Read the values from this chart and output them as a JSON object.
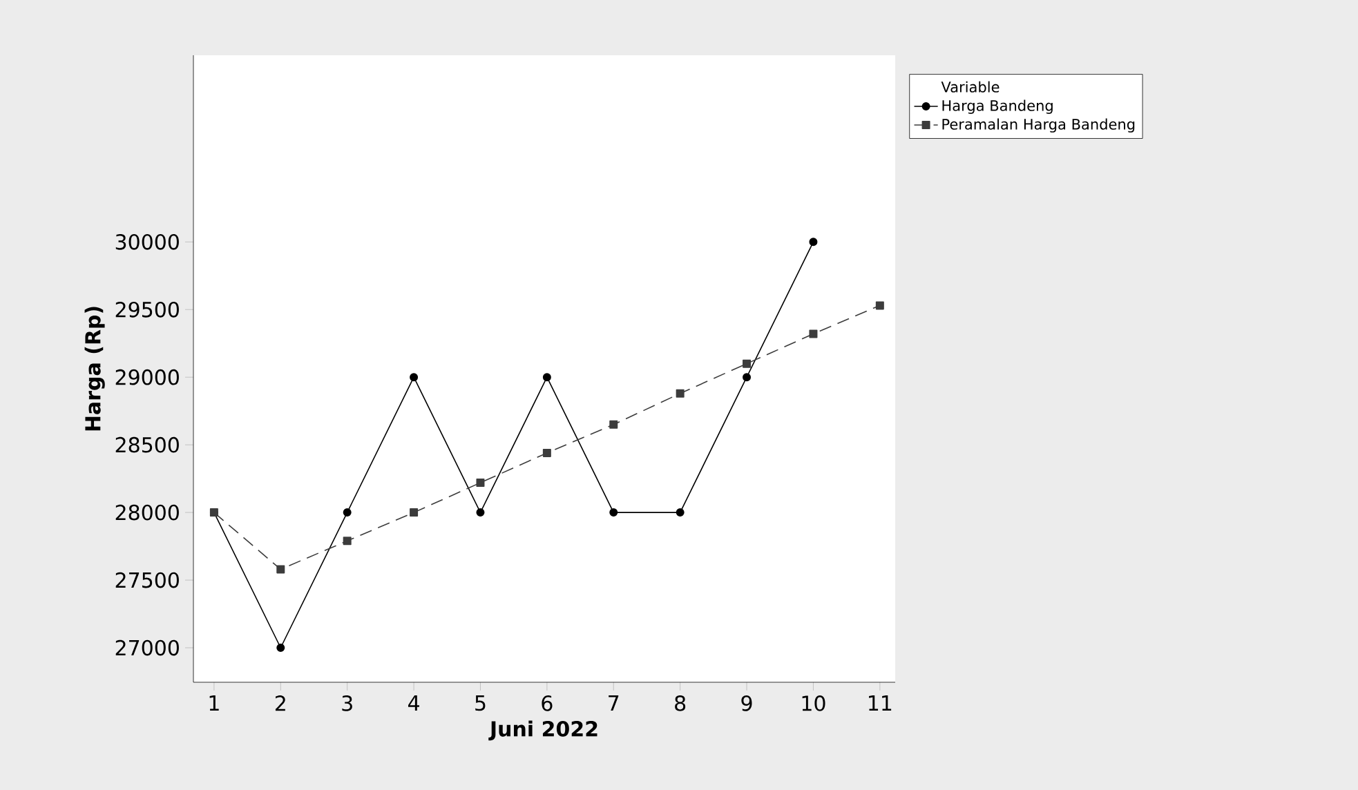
{
  "chart_data": {
    "type": "line",
    "xlabel": "Juni 2022",
    "ylabel": "Harga (Rp)",
    "legend_title": "Variable",
    "x": [
      1,
      2,
      3,
      4,
      5,
      6,
      7,
      8,
      9,
      10,
      11
    ],
    "series": [
      {
        "name": "Harga Bandeng",
        "color": "#000000",
        "marker": "circle",
        "line_style": "solid",
        "values": [
          28000,
          27000,
          28000,
          29000,
          28000,
          29000,
          28000,
          28000,
          29000,
          30000,
          null
        ]
      },
      {
        "name": "Peramalan Harga Bandeng",
        "color": "#3c3c3c",
        "marker": "square",
        "line_style": "dashed",
        "values": [
          28000,
          27580,
          27790,
          28000,
          28220,
          28440,
          28650,
          28880,
          29100,
          29320,
          29530
        ]
      }
    ],
    "xlim": [
      0.69,
      11.23
    ],
    "ylim": [
      26745,
      31380
    ],
    "xticks": [
      1,
      2,
      3,
      4,
      5,
      6,
      7,
      8,
      9,
      10,
      11
    ],
    "yticks": [
      27000,
      27500,
      28000,
      28500,
      29000,
      29500,
      30000
    ],
    "grid": false,
    "legend": "top right"
  }
}
